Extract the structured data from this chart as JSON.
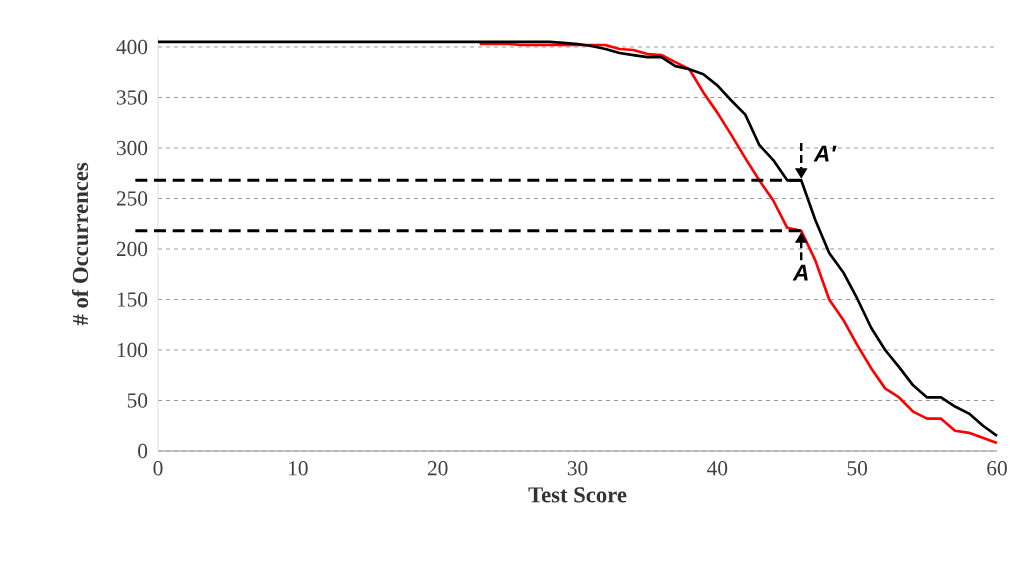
{
  "chart_data": {
    "type": "line",
    "xlabel": "Test Score",
    "ylabel": "# of Occurrences",
    "xlim": [
      0,
      60
    ],
    "ylim": [
      0,
      410
    ],
    "xticks": [
      0,
      10,
      20,
      30,
      40,
      50,
      60
    ],
    "yticks": [
      0,
      50,
      100,
      150,
      200,
      250,
      300,
      350,
      400
    ],
    "grid": "y",
    "marker": "none",
    "line_style": "solid",
    "x": [
      0,
      1,
      2,
      3,
      4,
      5,
      6,
      7,
      8,
      9,
      10,
      11,
      12,
      13,
      14,
      15,
      16,
      17,
      18,
      19,
      20,
      21,
      22,
      23,
      24,
      25,
      26,
      27,
      28,
      29,
      30,
      31,
      32,
      33,
      34,
      35,
      36,
      37,
      38,
      39,
      40,
      41,
      42,
      43,
      44,
      45,
      46,
      47,
      48,
      49,
      50,
      51,
      52,
      53,
      54,
      55,
      56,
      57,
      58,
      59,
      60
    ],
    "series": [
      {
        "color": "#ff0000",
        "values": [
          null,
          null,
          null,
          null,
          null,
          null,
          null,
          null,
          null,
          null,
          null,
          null,
          null,
          null,
          null,
          null,
          null,
          null,
          null,
          null,
          null,
          null,
          null,
          403,
          403,
          403,
          402,
          402,
          402,
          402,
          402,
          402,
          402,
          398,
          397,
          393,
          392,
          385,
          378,
          355,
          335,
          313,
          290,
          268,
          248,
          221,
          218,
          189,
          150,
          130,
          105,
          82,
          62,
          53,
          39,
          32,
          32,
          20,
          18,
          13,
          8
        ]
      },
      {
        "color": "#000000",
        "values": [
          405,
          405,
          405,
          405,
          405,
          405,
          405,
          405,
          405,
          405,
          405,
          405,
          405,
          405,
          405,
          405,
          405,
          405,
          405,
          405,
          405,
          405,
          405,
          405,
          405,
          405,
          405,
          405,
          405,
          404,
          403,
          401,
          398,
          394,
          392,
          390,
          390,
          381,
          378,
          373,
          362,
          347,
          333,
          303,
          288,
          268,
          268,
          229,
          196,
          177,
          151,
          122,
          100,
          83,
          65,
          53,
          53,
          44,
          37,
          25,
          15
        ]
      }
    ],
    "ref_lines": [
      {
        "axis": "y",
        "value": 268,
        "line_style": "dashed"
      },
      {
        "axis": "y",
        "value": 218,
        "line_style": "dashed"
      }
    ],
    "annotations": [
      {
        "text": "A′",
        "x": 46,
        "y": 268
      },
      {
        "text": "A",
        "x": 46,
        "y": 218
      }
    ]
  }
}
